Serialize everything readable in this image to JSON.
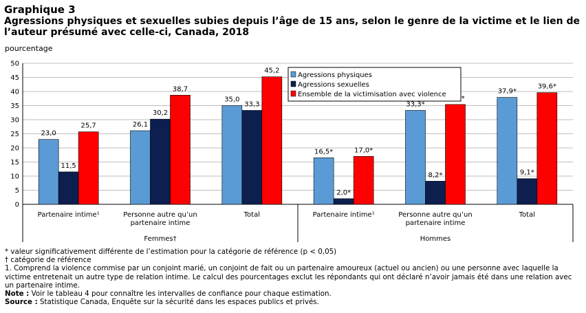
{
  "header": {
    "chart_number": "Graphique 3",
    "title": "Agressions physiques et sexuelles subies depuis l’âge de 15 ans, selon le genre de la victime et le lien de l’auteur présumé avec celle-ci,  Canada, 2018",
    "y_unit": "pourcentage"
  },
  "colors": {
    "series_1": "#5b9bd5",
    "series_2": "#0d1f4f",
    "series_3": "#ff0000"
  },
  "chart_data": {
    "type": "bar",
    "title": "Agressions physiques et sexuelles subies depuis l’âge de 15 ans, selon le genre de la victime et le lien de l’auteur présumé avec celle-ci,  Canada, 2018",
    "ylabel": "pourcentage",
    "ylim": [
      0,
      50
    ],
    "yticks": [
      0,
      5,
      10,
      15,
      20,
      25,
      30,
      35,
      40,
      45,
      50
    ],
    "grid": true,
    "legend_position": "top-right",
    "groups": [
      {
        "name": "Femmes†",
        "categories": [
          "Partenaire intime¹",
          "Personne autre qu’un partenaire intime",
          "Total"
        ]
      },
      {
        "name": "Hommes",
        "categories": [
          "Partenaire intime¹",
          "Personne autre qu’un partenaire intime",
          "Total"
        ]
      }
    ],
    "series": [
      {
        "name": "Agressions physiques",
        "values": [
          23.0,
          26.1,
          35.0,
          16.5,
          33.3,
          37.9
        ],
        "labels": [
          "23,0",
          "26,1",
          "35,0",
          "16,5*",
          "33,3*",
          "37,9*"
        ]
      },
      {
        "name": "Agressions sexuelles",
        "values": [
          11.5,
          30.2,
          33.3,
          2.0,
          8.2,
          9.1
        ],
        "labels": [
          "11,5",
          "30,2",
          "33,3",
          "2,0*",
          "8,2*",
          "9,1*"
        ]
      },
      {
        "name": "Ensemble de la victimisation avec violence",
        "values": [
          25.7,
          38.7,
          45.2,
          17.0,
          35.4,
          39.6
        ],
        "labels": [
          "25,7",
          "38,7",
          "45,2",
          "17,0*",
          "35,4*",
          "39,6*"
        ]
      }
    ]
  },
  "notes": {
    "significance": "* valeur significativement différente de l’estimation pour la catégorie de référence (p < 0,05)",
    "reference": "† catégorie de référence",
    "footnote_1": "1. Comprend la violence commise par un conjoint marié, un conjoint de fait ou un partenaire amoureux (actuel ou ancien) ou une personne avec laquelle la victime entretenait un autre type de relation intime. Le calcul des pourcentages exclut les répondants qui ont déclaré n’avoir jamais été dans une relation avec un partenaire intime.",
    "note_label": "Note :",
    "note_text": " Voir le tableau 4 pour connaître les intervalles de confiance pour chaque estimation.",
    "source_label": "Source :",
    "source_text": " Statistique Canada, Enquête sur la sécurité dans les espaces publics et privés."
  }
}
